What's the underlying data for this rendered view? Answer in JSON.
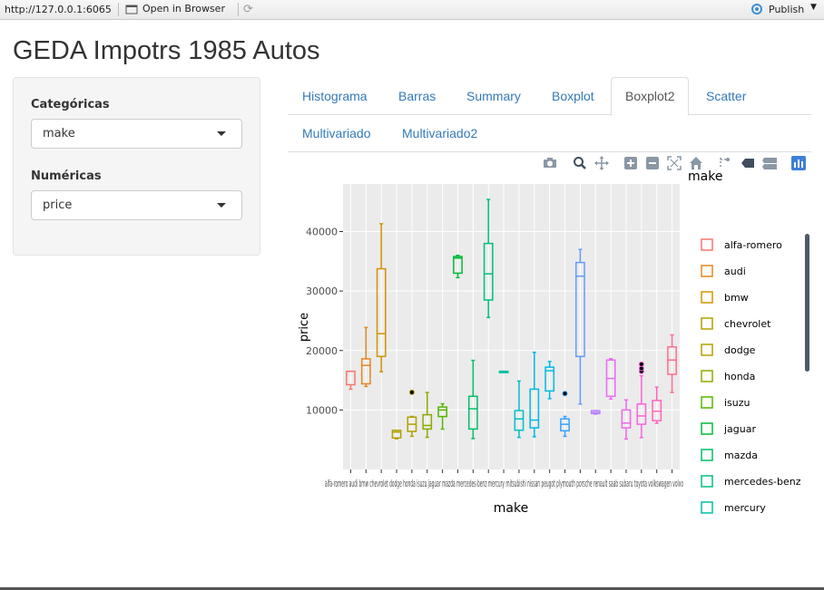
{
  "browser": {
    "url": "http://127.0.0.1:6065",
    "open_label": "Open in Browser",
    "publish_label": "Publish"
  },
  "app": {
    "title": "GEDA Impotrs 1985 Autos"
  },
  "sidebar": {
    "cat_label": "Categóricas",
    "cat_value": "make",
    "num_label": "Numéricas",
    "num_value": "price"
  },
  "tabs": [
    {
      "label": "Histograma"
    },
    {
      "label": "Barras"
    },
    {
      "label": "Summary"
    },
    {
      "label": "Boxplot"
    },
    {
      "label": "Boxplot2"
    },
    {
      "label": "Scatter"
    },
    {
      "label": "Multivariado"
    },
    {
      "label": "Multivariado2"
    }
  ],
  "active_tab": "Boxplot2",
  "modebar_icons": [
    "camera-icon",
    "zoom-icon",
    "pan-icon",
    "zoom-in-icon",
    "zoom-out-icon",
    "autoscale-icon",
    "home-icon",
    "spike-icon",
    "hover-closest-icon",
    "hover-compare-icon",
    "plotly-logo-icon"
  ],
  "chart_data": {
    "type": "boxplot",
    "xlabel": "make",
    "ylabel": "price",
    "legend_title": "make",
    "ylim": [
      0,
      48000
    ],
    "yticks": [
      10000,
      20000,
      30000,
      40000
    ],
    "x_ticklabels_visible": "alfa-romero audi bmw chevrolet dodge honda isuzu jaguar mazda mercedes-benz mercury mitsubishi nissan peugot plymouth porsche renault saab subaru toyota volkswagen volvo",
    "legend_visible": [
      "alfa-romero",
      "audi",
      "bmw",
      "chevrolet",
      "dodge",
      "honda",
      "isuzu",
      "jaguar",
      "mazda",
      "mercedes-benz",
      "mercury"
    ],
    "series": [
      {
        "name": "alfa-romero",
        "color": "#F8766D",
        "min": 13495,
        "q1": 14250,
        "median": 16500,
        "q3": 16500,
        "max": 16500,
        "outliers": []
      },
      {
        "name": "audi",
        "color": "#E7851E",
        "min": 13950,
        "q1": 14400,
        "median": 17500,
        "q3": 18600,
        "max": 23875,
        "outliers": []
      },
      {
        "name": "bmw",
        "color": "#D09400",
        "min": 16430,
        "q1": 19000,
        "median": 22835,
        "q3": 33750,
        "max": 41315,
        "outliers": []
      },
      {
        "name": "chevrolet",
        "color": "#B2A100",
        "min": 5151,
        "q1": 5300,
        "median": 6295,
        "q3": 6575,
        "max": 6575,
        "outliers": []
      },
      {
        "name": "dodge",
        "color": "#B2A100",
        "min": 5572,
        "q1": 6400,
        "median": 7600,
        "q3": 8800,
        "max": 8921,
        "outliers": [
          12964
        ]
      },
      {
        "name": "honda",
        "color": "#8BAB00",
        "min": 5399,
        "q1": 6800,
        "median": 7400,
        "q3": 9200,
        "max": 12945,
        "outliers": []
      },
      {
        "name": "isuzu",
        "color": "#55B700",
        "min": 6785,
        "q1": 8900,
        "median": 10000,
        "q3": 10500,
        "max": 11048,
        "outliers": []
      },
      {
        "name": "jaguar",
        "color": "#00BA38",
        "min": 32250,
        "q1": 33000,
        "median": 35550,
        "q3": 35800,
        "max": 36000,
        "outliers": []
      },
      {
        "name": "mazda",
        "color": "#00BE67",
        "min": 5195,
        "q1": 6800,
        "median": 10200,
        "q3": 12300,
        "max": 18344,
        "outliers": []
      },
      {
        "name": "mercedes-benz",
        "color": "#00BF7D",
        "min": 25552,
        "q1": 28500,
        "median": 32892,
        "q3": 38000,
        "max": 45400,
        "outliers": []
      },
      {
        "name": "mercury",
        "color": "#00C1A3",
        "min": 16503,
        "q1": 16503,
        "median": 16503,
        "q3": 16503,
        "max": 16503,
        "outliers": []
      },
      {
        "name": "mitsubishi",
        "color": "#00BFC4",
        "min": 5389,
        "q1": 6600,
        "median": 8500,
        "q3": 9900,
        "max": 14869,
        "outliers": []
      },
      {
        "name": "nissan",
        "color": "#00B8E7",
        "min": 5499,
        "q1": 7000,
        "median": 8300,
        "q3": 13500,
        "max": 19699,
        "outliers": []
      },
      {
        "name": "peugot",
        "color": "#00B8E7",
        "min": 11900,
        "q1": 13200,
        "median": 16600,
        "q3": 17200,
        "max": 18150,
        "outliers": []
      },
      {
        "name": "plymouth",
        "color": "#35A2FF",
        "min": 5572,
        "q1": 6500,
        "median": 7600,
        "q3": 8500,
        "max": 8921,
        "outliers": [
          12764
        ]
      },
      {
        "name": "porsche",
        "color": "#619CFF",
        "min": 11000,
        "q1": 19000,
        "median": 32500,
        "q3": 34800,
        "max": 37000,
        "outliers": []
      },
      {
        "name": "renault",
        "color": "#B983FF",
        "min": 9295,
        "q1": 9400,
        "median": 9600,
        "q3": 9895,
        "max": 9895,
        "outliers": []
      },
      {
        "name": "saab",
        "color": "#E76BF3",
        "min": 11850,
        "q1": 12300,
        "median": 15300,
        "q3": 18400,
        "max": 18620,
        "outliers": []
      },
      {
        "name": "subaru",
        "color": "#F066E8",
        "min": 5118,
        "q1": 7000,
        "median": 7800,
        "q3": 10000,
        "max": 11694,
        "outliers": []
      },
      {
        "name": "toyota",
        "color": "#FA62DB",
        "min": 5348,
        "q1": 7600,
        "median": 9000,
        "q3": 11000,
        "max": 15750,
        "outliers": [
          16500,
          17000,
          17700
        ]
      },
      {
        "name": "volkswagen",
        "color": "#FF62BC",
        "min": 7775,
        "q1": 8200,
        "median": 9800,
        "q3": 11600,
        "max": 13845,
        "outliers": []
      },
      {
        "name": "volvo",
        "color": "#FF6C91",
        "min": 12940,
        "q1": 16000,
        "median": 18400,
        "q3": 20600,
        "max": 22625,
        "outliers": []
      }
    ]
  }
}
